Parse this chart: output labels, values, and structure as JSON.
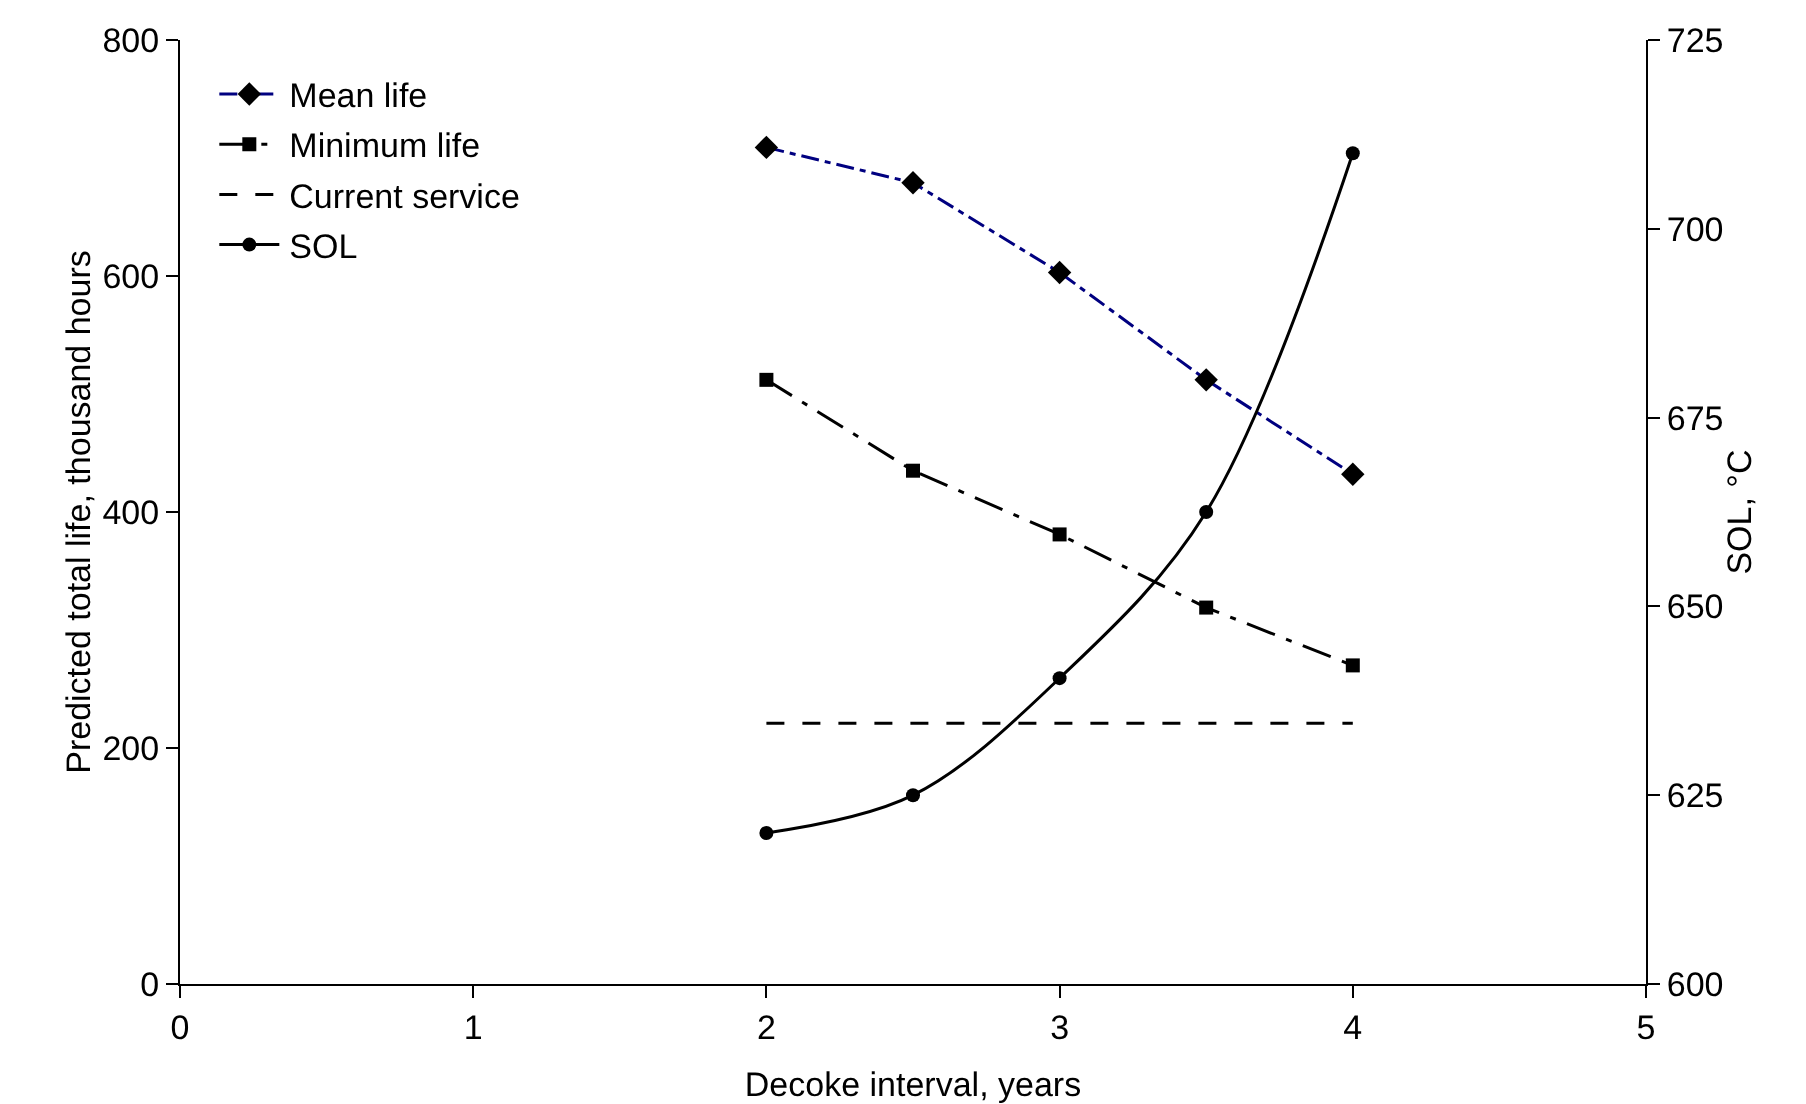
{
  "chart_data": {
    "type": "line",
    "xlabel": "Decoke interval, years",
    "ylabel": "Predicted total life, thousand hours",
    "y2label": "SOL, °C",
    "x": [
      2,
      2.5,
      3,
      3.5,
      4
    ],
    "xlim": [
      0,
      5
    ],
    "xticks": [
      0,
      1,
      2,
      3,
      4,
      5
    ],
    "ylim": [
      0,
      800
    ],
    "yticks": [
      0,
      200,
      400,
      600,
      800
    ],
    "y2lim": [
      600,
      725
    ],
    "y2ticks": [
      600,
      625,
      650,
      675,
      700,
      725
    ],
    "grid": false,
    "legend": "top left",
    "series": [
      {
        "name": "Mean life",
        "color": "#000080",
        "marker": "diamond",
        "line_style": "dashdot",
        "values": [
          709,
          679,
          603,
          512,
          432
        ]
      },
      {
        "name": "Minimum life",
        "color": "#000000",
        "marker": "square",
        "line_style": "longdashdot",
        "values": [
          512,
          435,
          381,
          319,
          270
        ]
      },
      {
        "name": "Current service",
        "color": "#000000",
        "marker": "none",
        "line_style": "dashed",
        "x": [
          2,
          4
        ],
        "values": [
          221,
          221
        ]
      },
      {
        "name": "SOL",
        "color": "#000000",
        "marker": "circle",
        "line_style": "solid",
        "axis": "y2",
        "values": [
          620,
          625,
          640.5,
          662.5,
          710
        ]
      }
    ]
  }
}
